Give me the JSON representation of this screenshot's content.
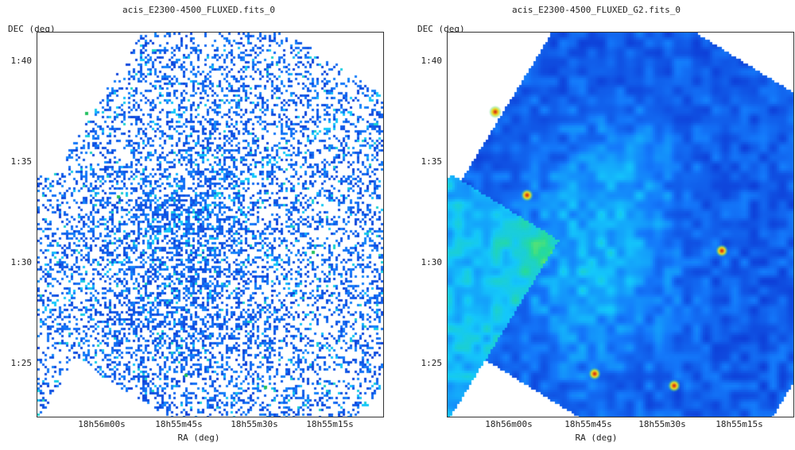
{
  "panels": [
    {
      "title": "acis_E2300-4500_FLUXED.fits_0",
      "ylabel": "DEC (deg)",
      "xlabel": "RA (deg)",
      "yticks": [
        "1:40",
        "1:35",
        "1:30",
        "1:25"
      ],
      "xticks": [
        "18h56m00s",
        "18h55m45s",
        "18h55m30s",
        "18h55m15s"
      ],
      "render_style": "noisy-pixels"
    },
    {
      "title": "acis_E2300-4500_FLUXED_G2.fits_0",
      "ylabel": "DEC (deg)",
      "xlabel": "RA (deg)",
      "yticks": [
        "1:40",
        "1:35",
        "1:30",
        "1:25"
      ],
      "xticks": [
        "18h56m00s",
        "18h55m45s",
        "18h55m30s",
        "18h55m15s"
      ],
      "render_style": "smoothed"
    }
  ],
  "colors": {
    "low": "#0a14c8",
    "mid": "#12b4ff",
    "high": "#22d3a0",
    "peak": "#e8f020",
    "source": "#d01010"
  }
}
